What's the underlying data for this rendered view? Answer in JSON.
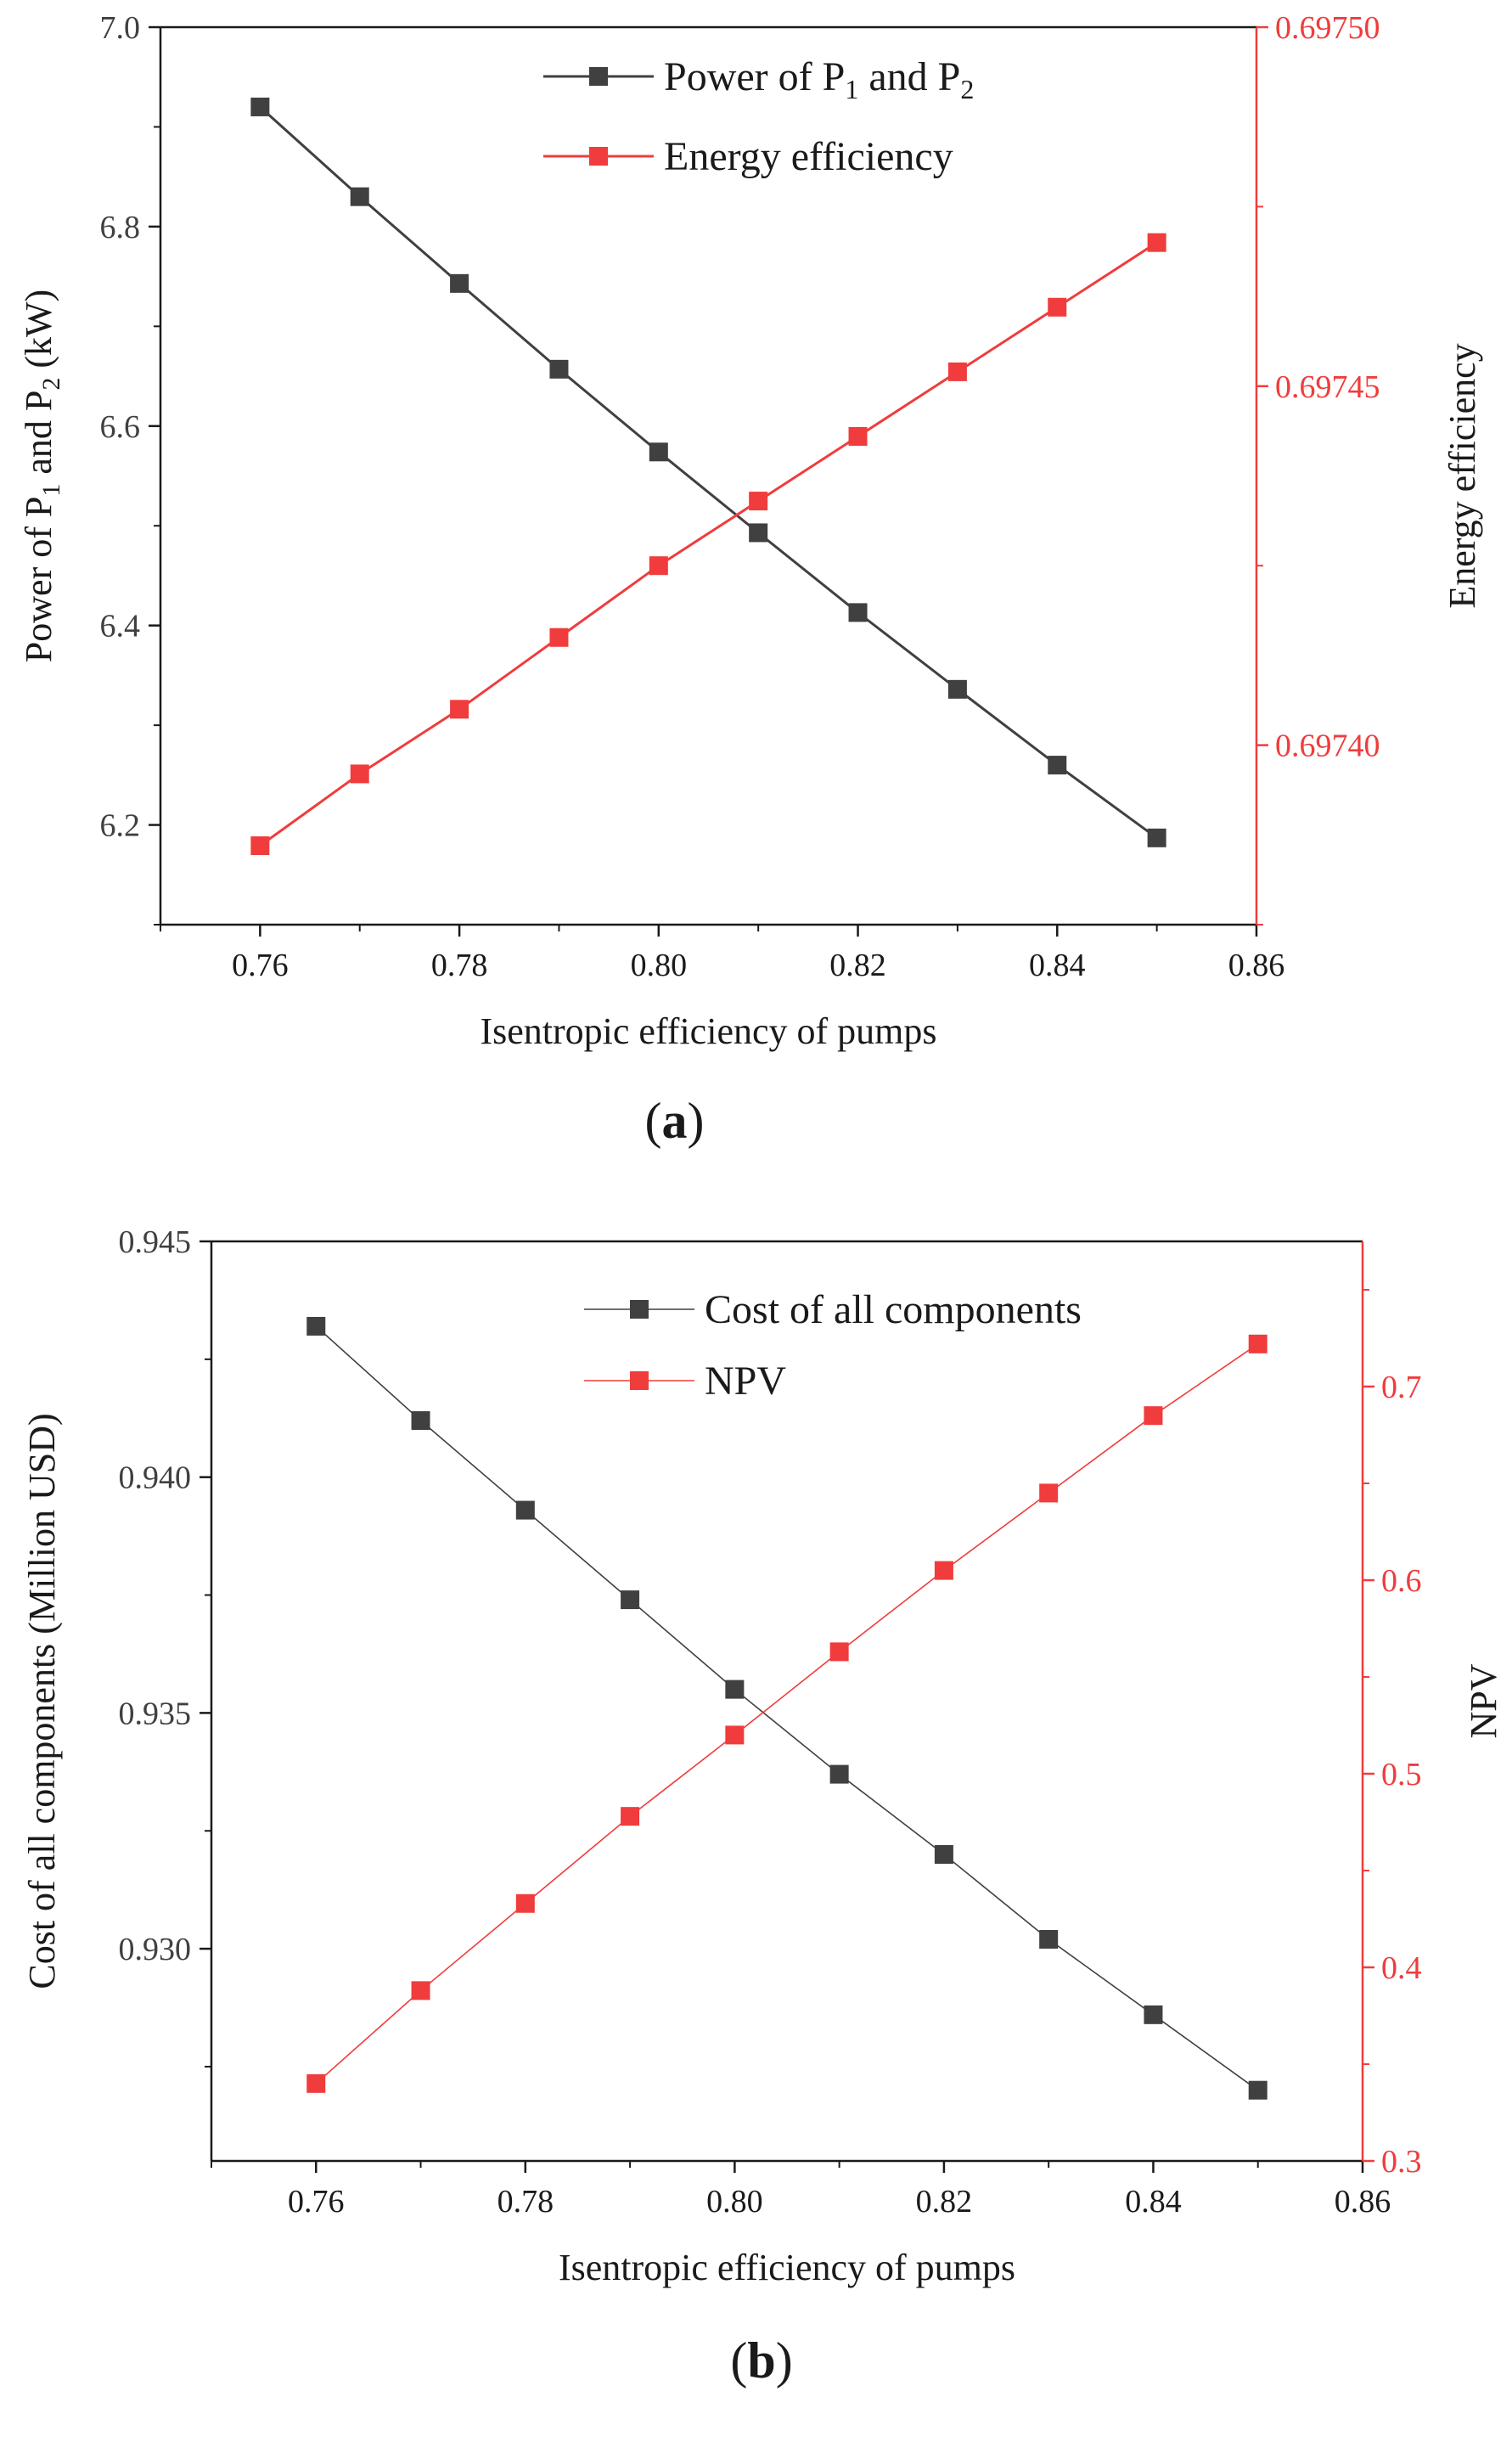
{
  "chart_data": [
    {
      "panel_label": "a",
      "type": "line",
      "x": [
        0.76,
        0.77,
        0.78,
        0.79,
        0.8,
        0.81,
        0.82,
        0.83,
        0.84,
        0.85
      ],
      "xlabel": "Isentropic efficiency of pumps",
      "xlim": [
        0.75,
        0.86
      ],
      "xticks": [
        "0.76",
        "0.78",
        "0.80",
        "0.82",
        "0.84",
        "0.86"
      ],
      "ylabel": {
        "pre": "Power of P",
        "s1": "1",
        "mid": " and P",
        "s2": "2",
        "post": " (kW)"
      },
      "ylim": [
        6.1,
        7.0
      ],
      "yticks": [
        "6.2",
        "6.4",
        "6.6",
        "6.8",
        "7.0"
      ],
      "y2label": "Energy efficiency",
      "y2lim": [
        0.697375,
        0.6975
      ],
      "y2ticks": [
        "0.69740",
        "0.69745",
        "0.69750"
      ],
      "legend_position": "top-center",
      "series": [
        {
          "name": {
            "pre": "Power of P",
            "s1": "1",
            "mid": " and P",
            "s2": "2"
          },
          "axis": "left",
          "color": "#404040",
          "values": [
            6.92,
            6.83,
            6.743,
            6.657,
            6.574,
            6.493,
            6.413,
            6.336,
            6.26,
            6.187
          ]
        },
        {
          "name": "Energy efficiency",
          "axis": "right",
          "color": "#f03c3c",
          "values": [
            0.697386,
            0.697396,
            0.697405,
            0.697415,
            0.697425,
            0.697434,
            0.697443,
            0.697452,
            0.697461,
            0.69747
          ]
        }
      ]
    },
    {
      "panel_label": "b",
      "type": "line",
      "x": [
        0.76,
        0.77,
        0.78,
        0.79,
        0.8,
        0.81,
        0.82,
        0.83,
        0.84,
        0.85
      ],
      "xlabel": "Isentropic efficiency of pumps",
      "xlim": [
        0.75,
        0.86
      ],
      "xticks": [
        "0.76",
        "0.78",
        "0.80",
        "0.82",
        "0.84",
        "0.86"
      ],
      "ylabel": "Cost of all components (Million USD)",
      "ylim": [
        0.9255,
        0.945
      ],
      "yticks": [
        "0.930",
        "0.935",
        "0.940",
        "0.945"
      ],
      "y2label": "NPV",
      "y2lim": [
        0.3,
        0.775
      ],
      "y2ticks": [
        "0.3",
        "0.4",
        "0.5",
        "0.6",
        "0.7"
      ],
      "legend_position": "top-center",
      "series": [
        {
          "name": "Cost of all components",
          "axis": "left",
          "color": "#404040",
          "values": [
            0.9432,
            0.9412,
            0.9393,
            0.9374,
            0.9355,
            0.9337,
            0.932,
            0.9302,
            0.9286,
            0.927
          ]
        },
        {
          "name": "NPV",
          "axis": "right",
          "color": "#f03c3c",
          "values": [
            0.34,
            0.388,
            0.433,
            0.478,
            0.52,
            0.563,
            0.605,
            0.645,
            0.685,
            0.722
          ]
        }
      ]
    }
  ]
}
